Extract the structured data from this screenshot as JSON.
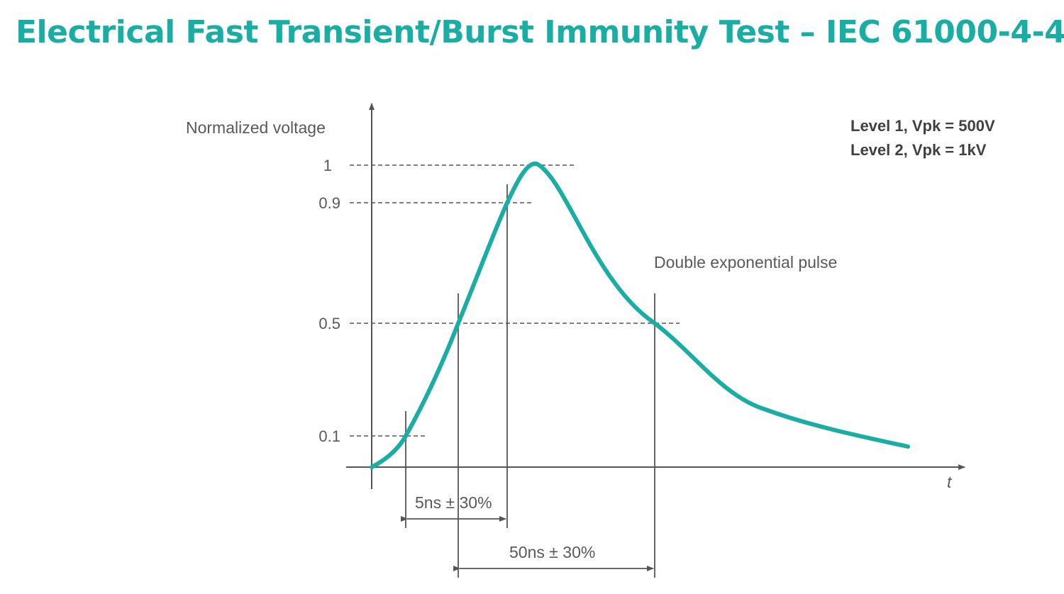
{
  "title": "Electrical Fast Transient/Burst Immunity Test – IEC 61000-4-4",
  "y_axis_label": "Normalized voltage",
  "x_axis_label": "t",
  "y_ticks": [
    "1",
    "0.9",
    "0.5",
    "0.1"
  ],
  "levels": [
    "Level 1, Vpk = 500V",
    "Level 2, Vpk = 1kV"
  ],
  "curve_label": "Double exponential pulse",
  "rise_time_label": "5ns ± 30%",
  "pulse_width_label": "50ns ± 30%",
  "colors": {
    "accent": "#1aada3",
    "text": "#595959",
    "axis": "#555555"
  }
}
